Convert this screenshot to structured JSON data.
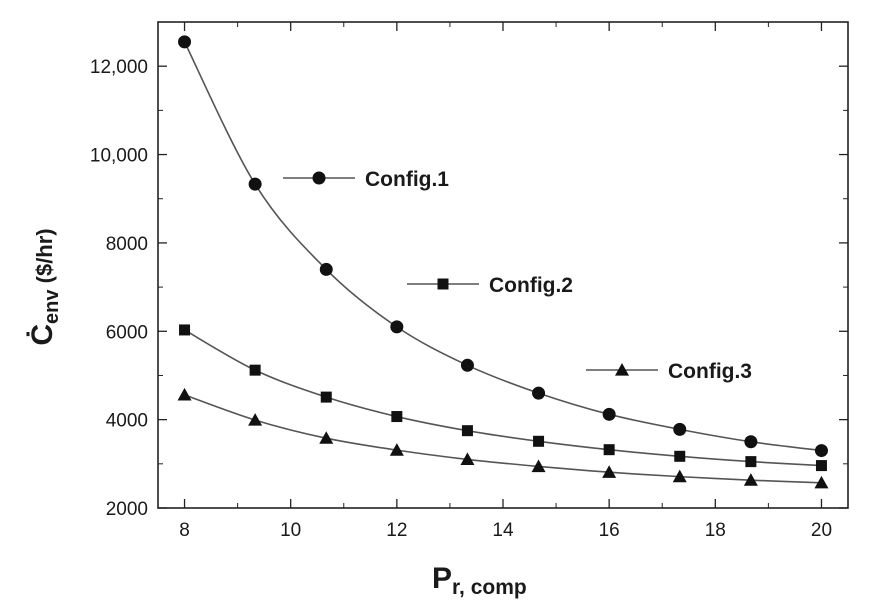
{
  "chart_data": {
    "type": "line",
    "x": [
      8,
      9.33,
      10.67,
      12,
      13.33,
      14.67,
      16,
      17.33,
      18.67,
      20
    ],
    "series": [
      {
        "name": "Config.1",
        "marker": "circle",
        "values": [
          12550,
          9330,
          7400,
          6100,
          5230,
          4600,
          4120,
          3780,
          3500,
          3300
        ]
      },
      {
        "name": "Config.2",
        "marker": "square",
        "values": [
          6030,
          5120,
          4510,
          4070,
          3750,
          3510,
          3320,
          3170,
          3050,
          2960
        ]
      },
      {
        "name": "Config.3",
        "marker": "triangle",
        "values": [
          4560,
          3990,
          3580,
          3310,
          3100,
          2940,
          2810,
          2710,
          2630,
          2570
        ]
      }
    ],
    "xlim": [
      7.5,
      20.5
    ],
    "ylim": [
      2000,
      13000
    ],
    "xticks": [
      8,
      10,
      12,
      14,
      16,
      18,
      20
    ],
    "xtick_labels": [
      "8",
      "10",
      "12",
      "14",
      "16",
      "18",
      "20"
    ],
    "yticks": [
      2000,
      4000,
      6000,
      8000,
      10000,
      12000
    ],
    "ytick_labels": [
      "2000",
      "4000",
      "6000",
      "8000",
      "10,000",
      "12,000"
    ],
    "xlabel_main": "P",
    "xlabel_sub": "r, comp",
    "ylabel_main": "Ċ",
    "ylabel_sub": "env",
    "ylabel_unit": " ($/hr)",
    "grid": false,
    "legend_placement": "inline labels next to curves",
    "colors": {
      "line": "#555555",
      "marker": "#111111",
      "axis": "#222222"
    }
  }
}
